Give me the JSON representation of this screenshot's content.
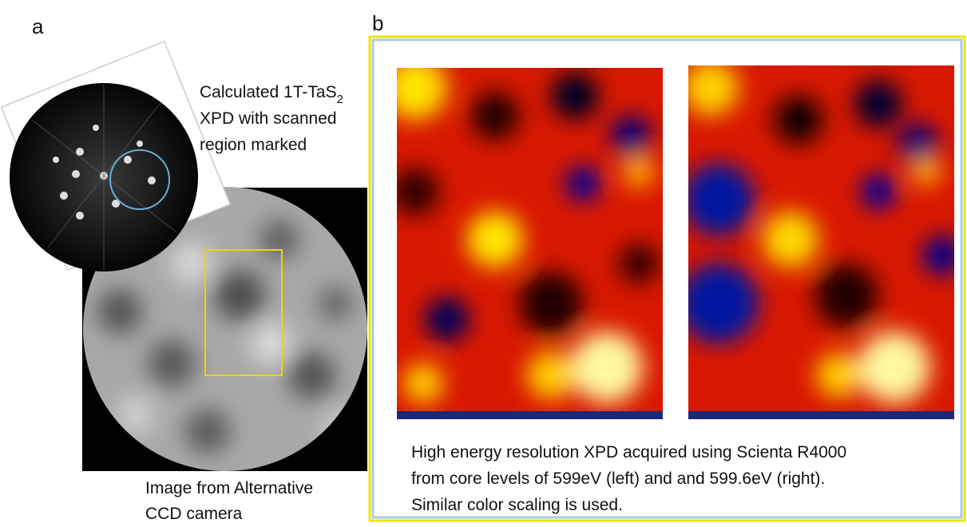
{
  "panels": {
    "a": {
      "label": "a",
      "calc_caption": {
        "line1": "Calculated 1T-TaS",
        "line1_sub": "2",
        "line2": "XPD with scanned",
        "line3": "region marked"
      },
      "ccd_caption": [
        "Image from Alternative",
        "CCD camera"
      ]
    },
    "b": {
      "label": "b",
      "caption": [
        "High energy  resolution XPD acquired using Scienta R4000",
        "from core levels of  599eV (left) and and 599.6eV (right).",
        "Similar color scaling is used."
      ]
    }
  }
}
